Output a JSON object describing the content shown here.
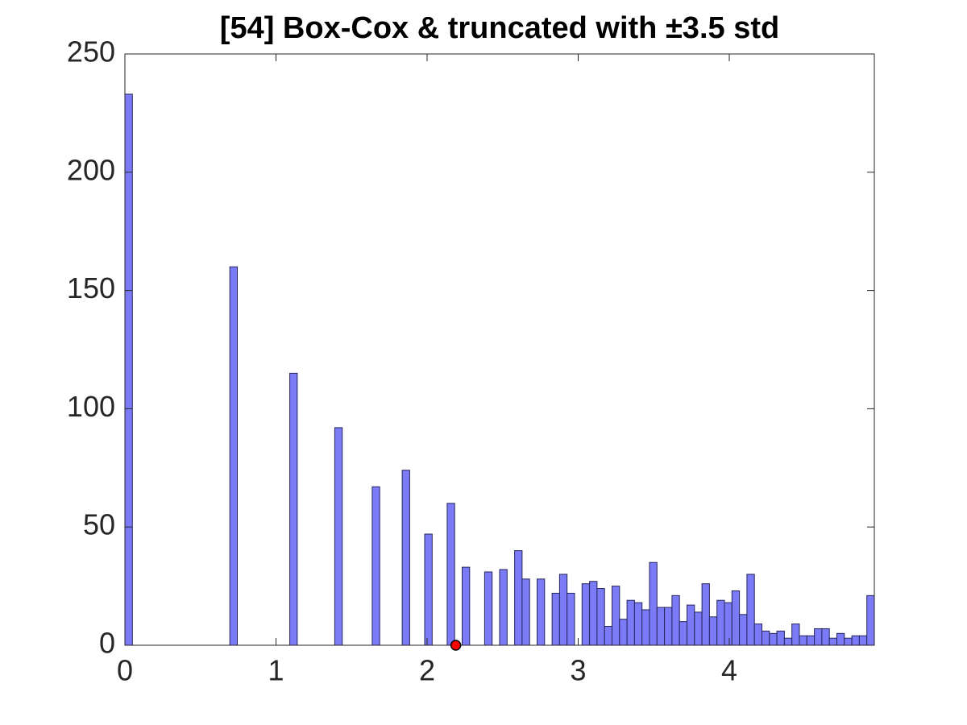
{
  "chart_data": {
    "type": "histogram",
    "title": "[54] Box-Cox & truncated with ±3.5 std",
    "bins": [
      0,
      0.0496,
      0.0992,
      0.1488,
      0.1984,
      0.248,
      0.2976,
      0.3472,
      0.3968,
      0.4464,
      0.496,
      0.5456,
      0.5952,
      0.6448,
      0.6944,
      0.744,
      0.7936,
      0.8432,
      0.8928,
      0.9424,
      0.992,
      1.0416,
      1.0912,
      1.1408,
      1.1904,
      1.24,
      1.2896,
      1.3392,
      1.3888,
      1.4384,
      1.488,
      1.5376,
      1.5872,
      1.6368,
      1.6864,
      1.736,
      1.7856,
      1.8352,
      1.8848,
      1.9344,
      1.984,
      2.0336,
      2.0832,
      2.1328,
      2.1824,
      2.232,
      2.2816,
      2.3312,
      2.3808,
      2.4304,
      2.48,
      2.5296,
      2.5792,
      2.6288,
      2.6784,
      2.728,
      2.7776,
      2.8272,
      2.8768,
      2.9264,
      2.976,
      3.0256,
      3.0752,
      3.1248,
      3.1744,
      3.224,
      3.2736,
      3.3232,
      3.3728,
      3.4224,
      3.472,
      3.5216,
      3.5712,
      3.6208,
      3.6704,
      3.72,
      3.7696,
      3.8192,
      3.8688,
      3.9184,
      3.968,
      4.0176,
      4.0672,
      4.1168,
      4.1664,
      4.216,
      4.2656,
      4.3152,
      4.3648,
      4.4144,
      4.464,
      4.5136,
      4.5632,
      4.6128,
      4.6624,
      4.712,
      4.7616,
      4.8112,
      4.8608,
      4.9104,
      4.96
    ],
    "values": [
      233,
      0,
      0,
      0,
      0,
      0,
      0,
      0,
      0,
      0,
      0,
      0,
      0,
      0,
      160,
      0,
      0,
      0,
      0,
      0,
      0,
      0,
      115,
      0,
      0,
      0,
      0,
      0,
      92,
      0,
      0,
      0,
      0,
      67,
      0,
      0,
      0,
      74,
      0,
      0,
      47,
      0,
      0,
      60,
      0,
      33,
      0,
      0,
      31,
      0,
      32,
      0,
      40,
      28,
      0,
      28,
      0,
      22,
      30,
      22,
      0,
      26,
      27,
      24,
      8,
      25,
      11,
      19,
      18,
      15,
      35,
      16,
      16,
      21,
      10,
      17,
      14,
      26,
      12,
      19,
      18,
      23,
      13,
      30,
      9,
      6,
      5,
      6,
      3,
      9,
      4,
      4,
      7,
      7,
      3,
      5,
      3,
      4,
      4,
      21
    ],
    "color": "#7b7bf7",
    "xlim": [
      0,
      4.96
    ],
    "xticks": [
      0,
      1,
      2,
      3,
      4
    ],
    "ylim": [
      0,
      250
    ],
    "yticks": [
      0,
      50,
      100,
      150,
      200,
      250
    ],
    "marker": {
      "x": 2.19,
      "y": 0,
      "color": "#ff0000"
    }
  }
}
